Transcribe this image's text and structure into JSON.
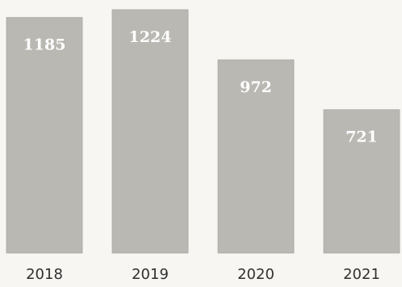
{
  "chart_data": {
    "type": "bar",
    "categories": [
      "2018",
      "2019",
      "2020",
      "2021"
    ],
    "values": [
      1185,
      1224,
      972,
      721
    ],
    "data_labels": [
      "1185",
      "1224",
      "972",
      "721"
    ],
    "title": "",
    "xlabel": "",
    "ylabel": "",
    "grid": false,
    "legend": "none",
    "colors": {
      "bar": "#b9b8b3",
      "bar_edge": "#a9a8a2",
      "data_label": "#ffffff",
      "tick_label": "#2f2f2f",
      "background": "#f7f6f2"
    }
  }
}
